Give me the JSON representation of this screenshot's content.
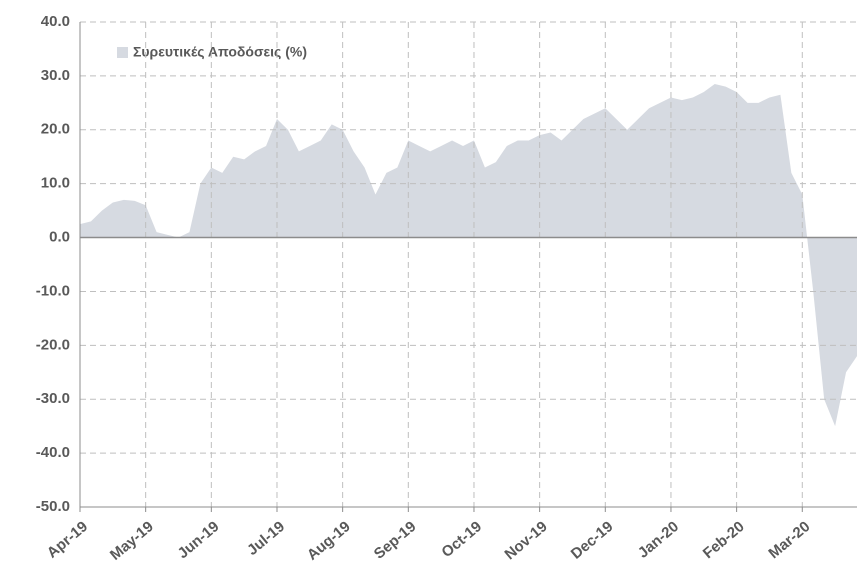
{
  "chart_data": {
    "type": "area",
    "legend": "Συρευτικές Αποδόσεις (%)",
    "color": "#d6dae1",
    "categories": [
      "Apr-19",
      null,
      null,
      null,
      null,
      null,
      "May-19",
      null,
      null,
      null,
      null,
      null,
      "Jun-19",
      null,
      null,
      null,
      null,
      null,
      "Jul-19",
      null,
      null,
      null,
      null,
      null,
      "Aug-19",
      null,
      null,
      null,
      null,
      null,
      "Sep-19",
      null,
      null,
      null,
      null,
      null,
      "Oct-19",
      null,
      null,
      null,
      null,
      null,
      "Nov-19",
      null,
      null,
      null,
      null,
      null,
      "Dec-19",
      null,
      null,
      null,
      null,
      null,
      "Jan-20",
      null,
      null,
      null,
      null,
      null,
      "Feb-20",
      null,
      null,
      null,
      null,
      null,
      "Mar-20",
      null,
      null,
      null,
      null,
      null
    ],
    "values": [
      2.5,
      3,
      5,
      6.5,
      7,
      6.8,
      6,
      1,
      0.5,
      0,
      1,
      10,
      13,
      12,
      15,
      14.5,
      16,
      17,
      22,
      20,
      16,
      17,
      18,
      21,
      20,
      16,
      13,
      8,
      12,
      13,
      18,
      17,
      16,
      17,
      18,
      17,
      18,
      13,
      14,
      17,
      18,
      18,
      19,
      19.5,
      18,
      20,
      22,
      23,
      24,
      22,
      20,
      22,
      24,
      25,
      26,
      25.5,
      26,
      27,
      28.5,
      28,
      27,
      25,
      25,
      26,
      26.5,
      12,
      8,
      -10,
      -30,
      -35,
      -25,
      -22
    ],
    "ylim": [
      -50,
      40
    ],
    "yticks": [
      {
        "value": -50,
        "label": "-50.0"
      },
      {
        "value": -40,
        "label": "-40.0"
      },
      {
        "value": -30,
        "label": "-30.0"
      },
      {
        "value": -20,
        "label": "-20.0"
      },
      {
        "value": -10,
        "label": "-10.0"
      },
      {
        "value": 0,
        "label": "0.0"
      },
      {
        "value": 10,
        "label": "10.0"
      },
      {
        "value": 20,
        "label": "20.0"
      },
      {
        "value": 30,
        "label": "30.0"
      },
      {
        "value": 40,
        "label": "40.0"
      }
    ],
    "grid": true
  }
}
